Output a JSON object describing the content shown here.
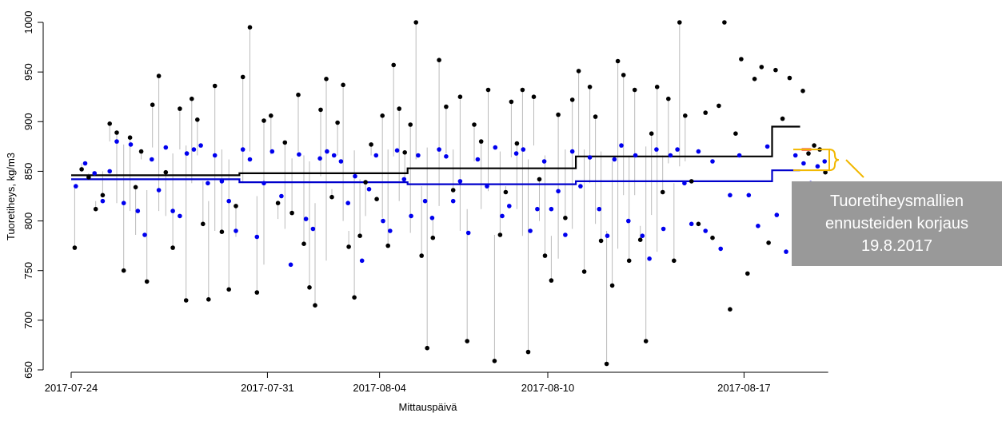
{
  "chart_data": {
    "type": "scatter",
    "ylabel": "Tuoretiheys, kg/m3",
    "xlabel": "Mittauspäivä",
    "ylim": [
      650,
      1000
    ],
    "yticks": [
      650,
      700,
      750,
      800,
      850,
      900,
      950,
      1000
    ],
    "xlim": [
      "2017-07-24",
      "2017-08-19"
    ],
    "xticks": [
      "2017-07-24",
      "2017-07-31",
      "2017-08-04",
      "2017-08-10",
      "2017-08-17"
    ],
    "grid": false,
    "colors": {
      "measured": "#000000",
      "predicted": "#0000ee",
      "measured_model_line": "#000000",
      "predicted_model_line": "#0000cc",
      "correction_marker": "#ee0000",
      "bracket": "#f2b800",
      "connector": "#bbbbbb"
    },
    "series": [
      {
        "role": "measured-dots",
        "points": [
          [
            "2017-07-24",
            773
          ],
          [
            "2017-07-24",
            852
          ],
          [
            "2017-07-24",
            844
          ],
          [
            "2017-07-24",
            812
          ],
          [
            "2017-07-25",
            826
          ],
          [
            "2017-07-25",
            898
          ],
          [
            "2017-07-25",
            889
          ],
          [
            "2017-07-25",
            750
          ],
          [
            "2017-07-26",
            884
          ],
          [
            "2017-07-26",
            834
          ],
          [
            "2017-07-26",
            870
          ],
          [
            "2017-07-26",
            739
          ],
          [
            "2017-07-26",
            917
          ],
          [
            "2017-07-27",
            946
          ],
          [
            "2017-07-27",
            849
          ],
          [
            "2017-07-27",
            773
          ],
          [
            "2017-07-27",
            913
          ],
          [
            "2017-07-28",
            720
          ],
          [
            "2017-07-28",
            923
          ],
          [
            "2017-07-28",
            902
          ],
          [
            "2017-07-28",
            797
          ],
          [
            "2017-07-28",
            721
          ],
          [
            "2017-07-29",
            936
          ],
          [
            "2017-07-29",
            789
          ],
          [
            "2017-07-29",
            731
          ],
          [
            "2017-07-29",
            815
          ],
          [
            "2017-07-30",
            945
          ],
          [
            "2017-07-30",
            995
          ],
          [
            "2017-07-30",
            728
          ],
          [
            "2017-07-30",
            901
          ],
          [
            "2017-07-31",
            906
          ],
          [
            "2017-07-31",
            818
          ],
          [
            "2017-07-31",
            879
          ],
          [
            "2017-07-31",
            808
          ],
          [
            "2017-08-01",
            927
          ],
          [
            "2017-08-01",
            777
          ],
          [
            "2017-08-01",
            733
          ],
          [
            "2017-08-01",
            715
          ],
          [
            "2017-08-01",
            912
          ],
          [
            "2017-08-02",
            943
          ],
          [
            "2017-08-02",
            824
          ],
          [
            "2017-08-02",
            899
          ],
          [
            "2017-08-02",
            937
          ],
          [
            "2017-08-02",
            774
          ],
          [
            "2017-08-03",
            723
          ],
          [
            "2017-08-03",
            785
          ],
          [
            "2017-08-03",
            839
          ],
          [
            "2017-08-03",
            877
          ],
          [
            "2017-08-03",
            822
          ],
          [
            "2017-08-04",
            906
          ],
          [
            "2017-08-04",
            775
          ],
          [
            "2017-08-04",
            957
          ],
          [
            "2017-08-04",
            913
          ],
          [
            "2017-08-04",
            869
          ],
          [
            "2017-08-05",
            897
          ],
          [
            "2017-08-05",
            1000
          ],
          [
            "2017-08-05",
            765
          ],
          [
            "2017-08-05",
            672
          ],
          [
            "2017-08-05",
            783
          ],
          [
            "2017-08-06",
            962
          ],
          [
            "2017-08-06",
            915
          ],
          [
            "2017-08-06",
            831
          ],
          [
            "2017-08-06",
            925
          ],
          [
            "2017-08-07",
            679
          ],
          [
            "2017-08-07",
            897
          ],
          [
            "2017-08-07",
            880
          ],
          [
            "2017-08-07",
            932
          ],
          [
            "2017-08-08",
            659
          ],
          [
            "2017-08-08",
            786
          ],
          [
            "2017-08-08",
            829
          ],
          [
            "2017-08-08",
            920
          ],
          [
            "2017-08-08",
            878
          ],
          [
            "2017-08-09",
            932
          ],
          [
            "2017-08-09",
            668
          ],
          [
            "2017-08-09",
            925
          ],
          [
            "2017-08-09",
            842
          ],
          [
            "2017-08-09",
            765
          ],
          [
            "2017-08-10",
            740
          ],
          [
            "2017-08-10",
            907
          ],
          [
            "2017-08-10",
            803
          ],
          [
            "2017-08-10",
            922
          ],
          [
            "2017-08-11",
            951
          ],
          [
            "2017-08-11",
            749
          ],
          [
            "2017-08-11",
            935
          ],
          [
            "2017-08-11",
            905
          ],
          [
            "2017-08-11",
            780
          ],
          [
            "2017-08-12",
            656
          ],
          [
            "2017-08-12",
            735
          ],
          [
            "2017-08-12",
            961
          ],
          [
            "2017-08-12",
            947
          ],
          [
            "2017-08-12",
            760
          ],
          [
            "2017-08-13",
            932
          ],
          [
            "2017-08-13",
            781
          ],
          [
            "2017-08-13",
            679
          ],
          [
            "2017-08-13",
            888
          ],
          [
            "2017-08-13",
            935
          ],
          [
            "2017-08-14",
            829
          ],
          [
            "2017-08-14",
            923
          ],
          [
            "2017-08-14",
            760
          ],
          [
            "2017-08-14",
            1000
          ],
          [
            "2017-08-14",
            906
          ],
          [
            "2017-08-15",
            840
          ],
          [
            "2017-08-15",
            797
          ],
          [
            "2017-08-15",
            909
          ],
          [
            "2017-08-15",
            783
          ],
          [
            "2017-08-16",
            916
          ],
          [
            "2017-08-16",
            1000
          ],
          [
            "2017-08-16",
            711
          ],
          [
            "2017-08-16",
            888
          ],
          [
            "2017-08-16",
            963
          ],
          [
            "2017-08-17",
            747
          ],
          [
            "2017-08-17",
            943
          ],
          [
            "2017-08-17",
            955
          ],
          [
            "2017-08-17",
            778
          ],
          [
            "2017-08-18",
            952
          ],
          [
            "2017-08-18",
            903
          ],
          [
            "2017-08-18",
            944
          ],
          [
            "2017-08-18",
            830
          ],
          [
            "2017-08-19",
            931
          ],
          [
            "2017-08-19",
            868
          ],
          [
            "2017-08-19",
            876
          ],
          [
            "2017-08-19",
            872
          ],
          [
            "2017-08-19",
            849
          ]
        ]
      },
      {
        "role": "predicted-dots",
        "points": [
          [
            "2017-07-24",
            835
          ],
          [
            "2017-07-24",
            858
          ],
          [
            "2017-07-24",
            848
          ],
          [
            "2017-07-25",
            820
          ],
          [
            "2017-07-25",
            850
          ],
          [
            "2017-07-25",
            880
          ],
          [
            "2017-07-25",
            818
          ],
          [
            "2017-07-26",
            877
          ],
          [
            "2017-07-26",
            810
          ],
          [
            "2017-07-26",
            786
          ],
          [
            "2017-07-26",
            862
          ],
          [
            "2017-07-27",
            831
          ],
          [
            "2017-07-27",
            874
          ],
          [
            "2017-07-27",
            810
          ],
          [
            "2017-07-27",
            805
          ],
          [
            "2017-07-28",
            868
          ],
          [
            "2017-07-28",
            872
          ],
          [
            "2017-07-28",
            876
          ],
          [
            "2017-07-28",
            838
          ],
          [
            "2017-07-29",
            866
          ],
          [
            "2017-07-29",
            840
          ],
          [
            "2017-07-29",
            820
          ],
          [
            "2017-07-29",
            790
          ],
          [
            "2017-07-30",
            872
          ],
          [
            "2017-07-30",
            862
          ],
          [
            "2017-07-30",
            784
          ],
          [
            "2017-07-30",
            838
          ],
          [
            "2017-07-31",
            870
          ],
          [
            "2017-07-31",
            825
          ],
          [
            "2017-07-31",
            756
          ],
          [
            "2017-08-01",
            867
          ],
          [
            "2017-08-01",
            802
          ],
          [
            "2017-08-01",
            792
          ],
          [
            "2017-08-01",
            863
          ],
          [
            "2017-08-02",
            870
          ],
          [
            "2017-08-02",
            866
          ],
          [
            "2017-08-02",
            860
          ],
          [
            "2017-08-02",
            818
          ],
          [
            "2017-08-03",
            845
          ],
          [
            "2017-08-03",
            760
          ],
          [
            "2017-08-03",
            832
          ],
          [
            "2017-08-03",
            866
          ],
          [
            "2017-08-04",
            800
          ],
          [
            "2017-08-04",
            790
          ],
          [
            "2017-08-04",
            871
          ],
          [
            "2017-08-04",
            842
          ],
          [
            "2017-08-05",
            805
          ],
          [
            "2017-08-05",
            866
          ],
          [
            "2017-08-05",
            820
          ],
          [
            "2017-08-05",
            803
          ],
          [
            "2017-08-06",
            872
          ],
          [
            "2017-08-06",
            865
          ],
          [
            "2017-08-06",
            820
          ],
          [
            "2017-08-06",
            840
          ],
          [
            "2017-08-07",
            788
          ],
          [
            "2017-08-07",
            862
          ],
          [
            "2017-08-07",
            835
          ],
          [
            "2017-08-08",
            874
          ],
          [
            "2017-08-08",
            805
          ],
          [
            "2017-08-08",
            815
          ],
          [
            "2017-08-08",
            868
          ],
          [
            "2017-08-09",
            872
          ],
          [
            "2017-08-09",
            790
          ],
          [
            "2017-08-09",
            812
          ],
          [
            "2017-08-09",
            860
          ],
          [
            "2017-08-10",
            812
          ],
          [
            "2017-08-10",
            830
          ],
          [
            "2017-08-10",
            786
          ],
          [
            "2017-08-10",
            870
          ],
          [
            "2017-08-11",
            835
          ],
          [
            "2017-08-11",
            864
          ],
          [
            "2017-08-11",
            812
          ],
          [
            "2017-08-12",
            785
          ],
          [
            "2017-08-12",
            862
          ],
          [
            "2017-08-12",
            876
          ],
          [
            "2017-08-12",
            800
          ],
          [
            "2017-08-13",
            866
          ],
          [
            "2017-08-13",
            785
          ],
          [
            "2017-08-13",
            762
          ],
          [
            "2017-08-13",
            872
          ],
          [
            "2017-08-14",
            792
          ],
          [
            "2017-08-14",
            866
          ],
          [
            "2017-08-14",
            872
          ],
          [
            "2017-08-14",
            838
          ],
          [
            "2017-08-15",
            797
          ],
          [
            "2017-08-15",
            870
          ],
          [
            "2017-08-15",
            790
          ],
          [
            "2017-08-15",
            860
          ],
          [
            "2017-08-16",
            772
          ],
          [
            "2017-08-16",
            826
          ],
          [
            "2017-08-16",
            866
          ],
          [
            "2017-08-17",
            826
          ],
          [
            "2017-08-17",
            795
          ],
          [
            "2017-08-17",
            875
          ],
          [
            "2017-08-18",
            806
          ],
          [
            "2017-08-18",
            769
          ],
          [
            "2017-08-18",
            866
          ],
          [
            "2017-08-19",
            858
          ],
          [
            "2017-08-19",
            838
          ],
          [
            "2017-08-19",
            855
          ],
          [
            "2017-08-19",
            860
          ]
        ]
      },
      {
        "role": "measured-model-step",
        "points": [
          [
            "2017-07-24",
            846
          ],
          [
            "2017-07-30",
            846
          ],
          [
            "2017-07-30",
            848
          ],
          [
            "2017-08-05",
            848
          ],
          [
            "2017-08-05",
            853
          ],
          [
            "2017-08-11",
            853
          ],
          [
            "2017-08-11",
            865
          ],
          [
            "2017-08-18",
            865
          ],
          [
            "2017-08-18",
            895
          ],
          [
            "2017-08-19",
            895
          ]
        ]
      },
      {
        "role": "predicted-model-step",
        "points": [
          [
            "2017-07-24",
            842
          ],
          [
            "2017-07-30",
            842
          ],
          [
            "2017-07-30",
            839
          ],
          [
            "2017-08-05",
            839
          ],
          [
            "2017-08-05",
            837
          ],
          [
            "2017-08-11",
            837
          ],
          [
            "2017-08-11",
            840
          ],
          [
            "2017-08-18",
            840
          ],
          [
            "2017-08-18",
            851
          ],
          [
            "2017-08-19",
            851
          ]
        ]
      },
      {
        "role": "correction-marker",
        "points": [
          [
            "2017-08-19",
            872
          ],
          [
            "2017-08-19",
            872
          ]
        ]
      }
    ],
    "annotation": {
      "text": "Tuoretiheysmallien\nennusteiden korjaus\n19.8.2017",
      "bracket_range": [
        851,
        872
      ]
    }
  }
}
